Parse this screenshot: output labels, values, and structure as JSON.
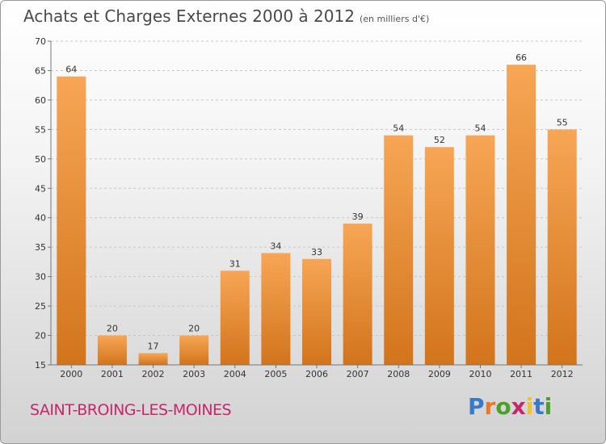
{
  "header": {
    "title": "Achats et Charges Externes 2000 à 2012",
    "subtitle": "(en milliers d'€)"
  },
  "footer": {
    "commune": "SAINT-BROING-LES-MOINES",
    "logo": "Proxiti",
    "logo_colors": [
      "#3a78c9",
      "#e8762b",
      "#4aa02c",
      "#c4286a",
      "#f1c232",
      "#3a78c9",
      "#4aa02c"
    ]
  },
  "colors": {
    "bar_top": "#f7a655",
    "bar_bottom": "#d2741c"
  },
  "chart_data": {
    "type": "bar",
    "title": "Achats et Charges Externes 2000 à 2012",
    "categories": [
      "2000",
      "2001",
      "2002",
      "2003",
      "2004",
      "2005",
      "2006",
      "2007",
      "2008",
      "2009",
      "2010",
      "2011",
      "2012"
    ],
    "values": [
      64,
      20,
      17,
      20,
      31,
      34,
      33,
      39,
      54,
      52,
      54,
      66,
      55
    ],
    "ylim": [
      15,
      70
    ],
    "yticks": [
      15,
      20,
      25,
      30,
      35,
      40,
      45,
      50,
      55,
      60,
      65,
      70
    ],
    "grid": true
  }
}
